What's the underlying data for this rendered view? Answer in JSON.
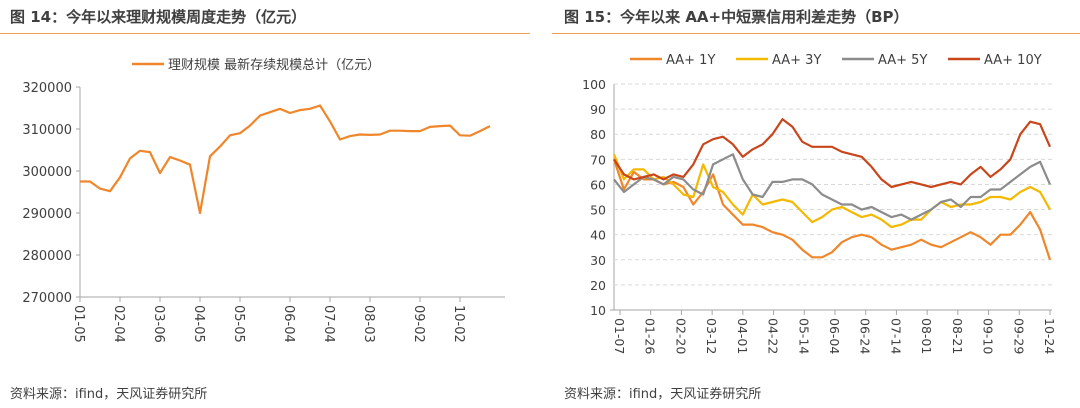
{
  "chart_data": [
    {
      "type": "line",
      "title": "图 14：今年以来理财规模周度走势（亿元）",
      "source": "资料来源：ifind，天风证券研究所",
      "xlabel": "",
      "ylabel": "",
      "ylim": [
        270000,
        320000
      ],
      "yticks": [
        "320000",
        "310000",
        "300000",
        "290000",
        "280000",
        "270000"
      ],
      "ytick_values": [
        320000,
        310000,
        300000,
        290000,
        280000,
        270000
      ],
      "xtick_labels": [
        "01-05",
        "02-04",
        "03-06",
        "04-05",
        "05-05",
        "06-04",
        "07-04",
        "08-03",
        "09-02",
        "10-02"
      ],
      "xtick_index": [
        0,
        4,
        8,
        12,
        16,
        21,
        25,
        29,
        34,
        38
      ],
      "grid": false,
      "legend_position": "top-center",
      "series": [
        {
          "name": "理财规模 最新存续规模总计（亿元）",
          "color": "#f0862a",
          "values": [
            297500,
            297500,
            295800,
            295200,
            298500,
            303000,
            304800,
            304500,
            299500,
            303300,
            302500,
            301500,
            290000,
            303500,
            305800,
            308500,
            309000,
            310800,
            313200,
            314000,
            314800,
            313800,
            314500,
            314800,
            315600,
            311800,
            307500,
            308300,
            308700,
            308600,
            308700,
            309600,
            309600,
            309500,
            309500,
            310500,
            310700,
            310800,
            308500,
            308400,
            309500,
            310700
          ]
        }
      ]
    },
    {
      "type": "line",
      "title": "图 15：今年以来 AA+中短票信用利差走势（BP）",
      "source": "资料来源：ifind，天风证券研究所",
      "xlabel": "",
      "ylabel": "",
      "ylim": [
        10,
        100
      ],
      "yticks": [
        "100",
        "90",
        "80",
        "70",
        "60",
        "50",
        "40",
        "30",
        "20",
        "10"
      ],
      "ytick_values": [
        100,
        90,
        80,
        70,
        60,
        50,
        40,
        30,
        20,
        10
      ],
      "xtick_labels": [
        "01-07",
        "01-26",
        "02-20",
        "03-12",
        "04-01",
        "04-22",
        "05-14",
        "06-04",
        "06-24",
        "07-14",
        "08-01",
        "08-21",
        "09-10",
        "09-29",
        "10-24"
      ],
      "grid": true,
      "legend_position": "top-center",
      "series": [
        {
          "name": "AA+ 1Y",
          "color": "#f0862a",
          "values": [
            70,
            58,
            65,
            62,
            62,
            60,
            61,
            59,
            52,
            57,
            64,
            52,
            48,
            44,
            44,
            43,
            41,
            40,
            38,
            34,
            31,
            31,
            33,
            37,
            39,
            40,
            39,
            36,
            34,
            35,
            36,
            38,
            36,
            35,
            37,
            39,
            41,
            39,
            36,
            40,
            40,
            44,
            49,
            42,
            30
          ]
        },
        {
          "name": "AA+ 3Y",
          "color": "#f5b800",
          "values": [
            72,
            62,
            66,
            66,
            62,
            63,
            60,
            56,
            55,
            68,
            59,
            57,
            52,
            48,
            56,
            52,
            53,
            54,
            53,
            49,
            45,
            47,
            50,
            51,
            49,
            47,
            48,
            46,
            43,
            44,
            46,
            46,
            50,
            53,
            51,
            52,
            52,
            53,
            55,
            55,
            54,
            57,
            59,
            57,
            50
          ]
        },
        {
          "name": "AA+ 5Y",
          "color": "#8c8c8c",
          "values": [
            62,
            57,
            60,
            63,
            62,
            60,
            63,
            62,
            58,
            56,
            68,
            70,
            72,
            62,
            56,
            55,
            61,
            61,
            62,
            62,
            60,
            56,
            54,
            52,
            52,
            50,
            51,
            49,
            47,
            48,
            46,
            48,
            50,
            53,
            54,
            51,
            55,
            55,
            58,
            58,
            61,
            64,
            67,
            69,
            60
          ]
        },
        {
          "name": "AA+ 10Y",
          "color": "#c8461a",
          "values": [
            70,
            64,
            62,
            63,
            64,
            62,
            64,
            63,
            68,
            76,
            78,
            79,
            76,
            71,
            74,
            76,
            80,
            86,
            83,
            77,
            75,
            75,
            75,
            73,
            72,
            71,
            67,
            62,
            59,
            60,
            61,
            60,
            59,
            60,
            61,
            60,
            64,
            67,
            63,
            66,
            70,
            80,
            85,
            84,
            75
          ]
        }
      ]
    }
  ]
}
